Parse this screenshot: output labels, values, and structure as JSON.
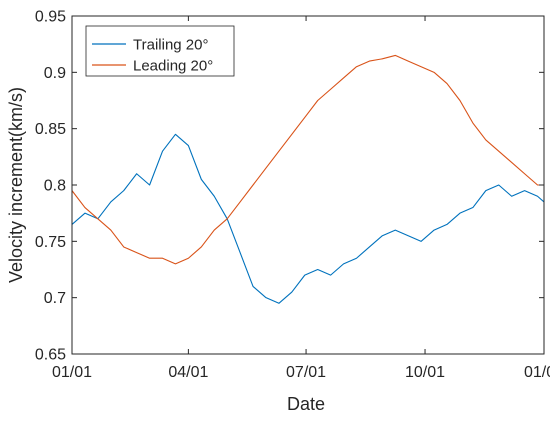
{
  "chart_data": {
    "type": "line",
    "title": "",
    "xlabel": "Date",
    "ylabel": "Velocity increment(km/s)",
    "x_tick_labels": [
      "01/01",
      "04/01",
      "07/01",
      "10/01",
      "01/01"
    ],
    "x_tick_days": [
      0,
      90,
      181,
      273,
      365
    ],
    "xlim": [
      0,
      365
    ],
    "ylim": [
      0.65,
      0.95
    ],
    "y_ticks": [
      0.65,
      0.7,
      0.75,
      0.8,
      0.85,
      0.9,
      0.95
    ],
    "y_tick_labels": [
      "0.65",
      "0.7",
      "0.75",
      "0.8",
      "0.85",
      "0.9",
      "0.95"
    ],
    "grid": false,
    "legend_position": "top-left",
    "series": [
      {
        "name": "Trailing 20°",
        "color": "#0072BD",
        "x": [
          0,
          10,
          20,
          30,
          40,
          50,
          60,
          70,
          80,
          90,
          100,
          110,
          120,
          130,
          140,
          150,
          160,
          170,
          180,
          190,
          200,
          210,
          220,
          230,
          240,
          250,
          260,
          270,
          280,
          290,
          300,
          310,
          320,
          330,
          340,
          350,
          360,
          365
        ],
        "y": [
          0.765,
          0.775,
          0.77,
          0.785,
          0.795,
          0.81,
          0.8,
          0.83,
          0.845,
          0.835,
          0.805,
          0.79,
          0.77,
          0.74,
          0.71,
          0.7,
          0.695,
          0.705,
          0.72,
          0.725,
          0.72,
          0.73,
          0.735,
          0.745,
          0.755,
          0.76,
          0.755,
          0.75,
          0.76,
          0.765,
          0.775,
          0.78,
          0.795,
          0.8,
          0.79,
          0.795,
          0.79,
          0.785
        ]
      },
      {
        "name": "Leading 20°",
        "color": "#D95319",
        "x": [
          0,
          10,
          20,
          30,
          40,
          50,
          60,
          70,
          80,
          90,
          100,
          110,
          120,
          130,
          140,
          150,
          160,
          170,
          180,
          190,
          200,
          210,
          220,
          230,
          240,
          250,
          260,
          270,
          280,
          290,
          300,
          310,
          320,
          330,
          340,
          350,
          360,
          365
        ],
        "y": [
          0.795,
          0.78,
          0.77,
          0.76,
          0.745,
          0.74,
          0.735,
          0.735,
          0.73,
          0.735,
          0.745,
          0.76,
          0.77,
          0.785,
          0.8,
          0.815,
          0.83,
          0.845,
          0.86,
          0.875,
          0.885,
          0.895,
          0.905,
          0.91,
          0.912,
          0.915,
          0.91,
          0.905,
          0.9,
          0.89,
          0.875,
          0.855,
          0.84,
          0.83,
          0.82,
          0.81,
          0.8,
          0.8
        ]
      }
    ]
  }
}
